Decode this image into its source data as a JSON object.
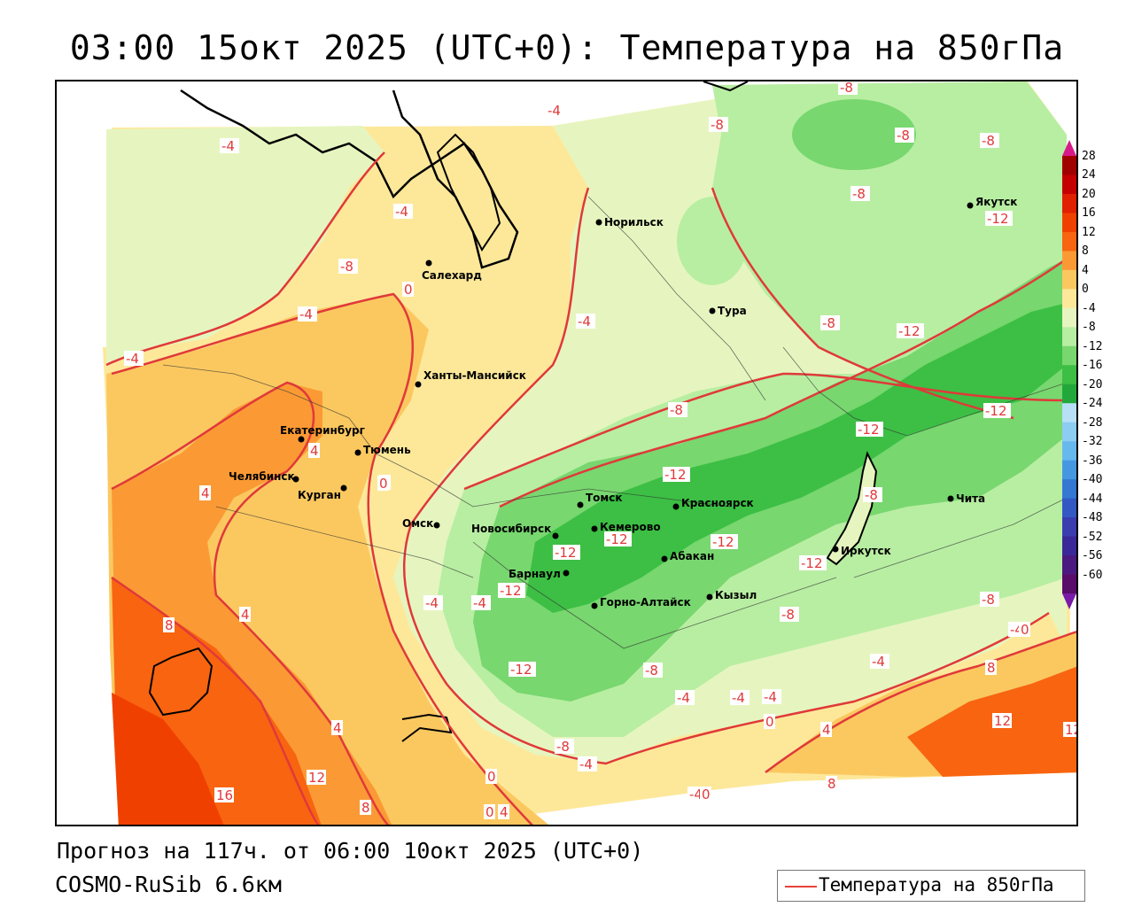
{
  "title": "03:00 15окт 2025 (UTC+0): Температура на 850гПа",
  "footer": {
    "forecast": "Прогноз на 117ч. от 06:00 10окт 2025 (UTC+0)",
    "model": "COSMO-RuSib 6.6км"
  },
  "legend": {
    "label": "Температура на 850гПа",
    "line_color": "#e8433a"
  },
  "colorbar": {
    "labels": [
      "28",
      "24",
      "20",
      "16",
      "12",
      "8",
      "4",
      "0",
      "-4",
      "-8",
      "-12",
      "-16",
      "-20",
      "-24",
      "-28",
      "-32",
      "-36",
      "-40",
      "-44",
      "-48",
      "-52",
      "-56",
      "-60"
    ],
    "colors": [
      "#a00000",
      "#c40000",
      "#e02000",
      "#f04000",
      "#f86410",
      "#fb9a35",
      "#fbc860",
      "#fde89a",
      "#e6f5bf",
      "#b8eea2",
      "#78d76f",
      "#3cbf44",
      "#22a83a",
      "#b7e0f7",
      "#8ecdf2",
      "#67b8ec",
      "#4598e0",
      "#3478d3",
      "#3358c4",
      "#3a3cb0",
      "#3a2898",
      "#4a1a80",
      "#5a0c6a"
    ],
    "top_arrow_color": "#d8198a",
    "bottom_arrow_color": "#7a1aa8"
  },
  "cities": [
    {
      "name": "Норильск"
    },
    {
      "name": "Салехард"
    },
    {
      "name": "Тура"
    },
    {
      "name": "Якутск"
    },
    {
      "name": "Ханты-Мансийск"
    },
    {
      "name": "Екатеринбург"
    },
    {
      "name": "Тюмень"
    },
    {
      "name": "Челябинск"
    },
    {
      "name": "Курган"
    },
    {
      "name": "Омск"
    },
    {
      "name": "Томск"
    },
    {
      "name": "Новосибирск"
    },
    {
      "name": "Кемерово"
    },
    {
      "name": "Красноярск"
    },
    {
      "name": "Барнаул"
    },
    {
      "name": "Абакан"
    },
    {
      "name": "Иркутск"
    },
    {
      "name": "Чита"
    },
    {
      "name": "Кызыл"
    },
    {
      "name": "Горно-Алтайск"
    }
  ],
  "isotherm_labels": [
    "-4",
    "-4",
    "-8",
    "-8",
    "-8",
    "-8",
    "-8",
    "-12",
    "-4",
    "-8",
    "-4",
    "-4",
    "0",
    "-4",
    "-8",
    "-12",
    "-12",
    "-12",
    "-12",
    "-12",
    "-8",
    "-12",
    "-12",
    "-12",
    "-8",
    "-8",
    "-8",
    "-4",
    "-4",
    "0",
    "4",
    "0",
    "4",
    "8",
    "4",
    "12",
    "16",
    "8",
    "4",
    "0",
    "-4",
    "-12",
    "-12",
    "-8",
    "-4",
    "-4",
    "-8",
    "-4",
    "-4",
    "0",
    "-4",
    "0",
    "8",
    "12",
    "12",
    "4",
    "8",
    "4",
    "0",
    "-4",
    "0"
  ]
}
